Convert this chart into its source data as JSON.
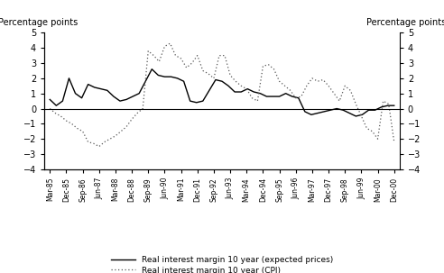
{
  "ylabel_left": "Percentage points",
  "ylabel_right": "Percentage points",
  "ylim": [
    -4,
    5
  ],
  "yticks": [
    -4,
    -3,
    -2,
    -1,
    0,
    1,
    2,
    3,
    4,
    5
  ],
  "legend1": "Real interest margin 10 year (expected prices)",
  "legend2": "Real interest margin 10 year (CPI)",
  "x_labels": [
    "Mar-85",
    "Dec-85",
    "Sep-86",
    "Jun-87",
    "Mar-88",
    "Dec-88",
    "Sep-89",
    "Jun-90",
    "Mar-91",
    "Dec-91",
    "Sep-92",
    "Jun-93",
    "Mar-94",
    "Dec-94",
    "Sep-95",
    "Jun-96",
    "Mar-97",
    "Dec-97",
    "Sep-98",
    "Jun-99",
    "Mar-00",
    "Dec-00"
  ],
  "solid_line": [
    0.6,
    0.2,
    0.5,
    2.0,
    1.0,
    0.7,
    1.6,
    1.4,
    1.3,
    1.2,
    0.8,
    0.5,
    0.6,
    0.8,
    1.0,
    1.8,
    2.6,
    2.2,
    2.1,
    2.1,
    2.0,
    1.8,
    0.5,
    0.4,
    0.5,
    1.2,
    1.9,
    1.8,
    1.5,
    1.1,
    1.1,
    1.3,
    1.1,
    1.0,
    0.8,
    0.8,
    0.8,
    1.0,
    0.8,
    0.7,
    -0.2,
    -0.4,
    -0.3,
    -0.2,
    -0.1,
    0.0,
    -0.1,
    -0.3,
    -0.5,
    -0.4,
    -0.1,
    -0.1,
    0.1,
    0.2,
    0.2
  ],
  "dotted_line": [
    0.0,
    -0.3,
    -0.5,
    -0.8,
    -1.0,
    -1.3,
    -1.5,
    -2.2,
    -2.3,
    -2.5,
    -2.2,
    -2.0,
    -1.8,
    -1.5,
    -1.2,
    -0.7,
    -0.3,
    0.0,
    3.8,
    3.5,
    3.1,
    4.1,
    4.3,
    3.5,
    3.3,
    2.7,
    3.0,
    3.5,
    2.5,
    2.3,
    2.0,
    3.5,
    3.5,
    2.2,
    1.8,
    1.5,
    1.3,
    0.7,
    0.5,
    2.8,
    2.9,
    2.6,
    1.8,
    1.5,
    1.2,
    0.7,
    0.8,
    1.5,
    2.0,
    1.8,
    1.9,
    1.5,
    1.0,
    0.5,
    1.5,
    1.2,
    0.3,
    -0.5,
    -1.3,
    -1.5,
    -2.0,
    0.5,
    0.3,
    -2.2
  ],
  "background_color": "#ffffff",
  "line_color_solid": "#000000",
  "line_color_dotted": "#555555"
}
